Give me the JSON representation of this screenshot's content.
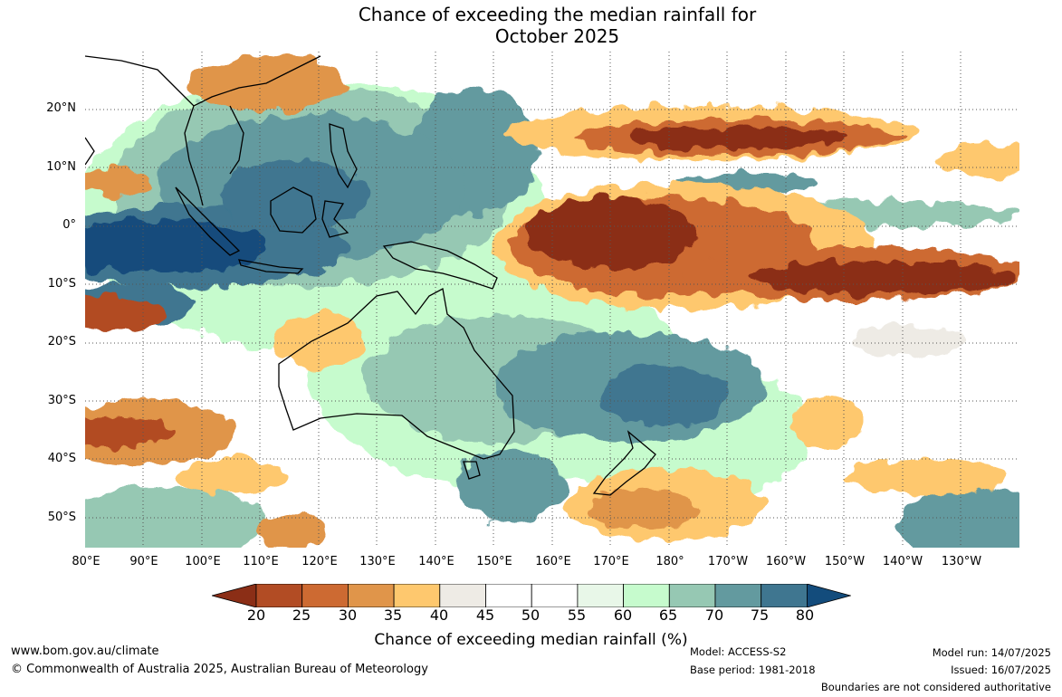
{
  "title": {
    "line1": "Chance of exceeding the median rainfall for",
    "line2": "October 2025"
  },
  "lat_labels": [
    "20°N",
    "10°N",
    "0°",
    "10°S",
    "20°S",
    "30°S",
    "40°S",
    "50°S"
  ],
  "lon_labels": [
    "80°E",
    "90°E",
    "100°E",
    "110°E",
    "120°E",
    "130°E",
    "140°E",
    "150°E",
    "160°E",
    "170°E",
    "180°",
    "170°W",
    "160°W",
    "150°W",
    "140°W",
    "130°W"
  ],
  "colorbar": {
    "ticks": [
      "20",
      "25",
      "30",
      "35",
      "40",
      "45",
      "50",
      "55",
      "60",
      "65",
      "70",
      "75",
      "80"
    ],
    "colors": [
      "#8b2e16",
      "#b24c24",
      "#cd6a32",
      "#e0954a",
      "#fec86e",
      "#eeebe5",
      "#ffffff",
      "#ffffff",
      "#e8f7e8",
      "#c6fbcd",
      "#96c8b3",
      "#639a9f",
      "#3f7690",
      "#134c7c"
    ],
    "label": "Chance of exceeding median rainfall (%)"
  },
  "footer": {
    "website": "www.bom.gov.au/climate",
    "copyright": "© Commonwealth of Australia 2025, Australian Bureau of Meteorology",
    "model": "Model: ACCESS-S2",
    "base_period": "Base period: 1981-2018",
    "model_run": "Model run: 14/07/2025",
    "issued": "Issued: 16/07/2025",
    "disclaimer": "Boundaries are not considered authoritative"
  }
}
